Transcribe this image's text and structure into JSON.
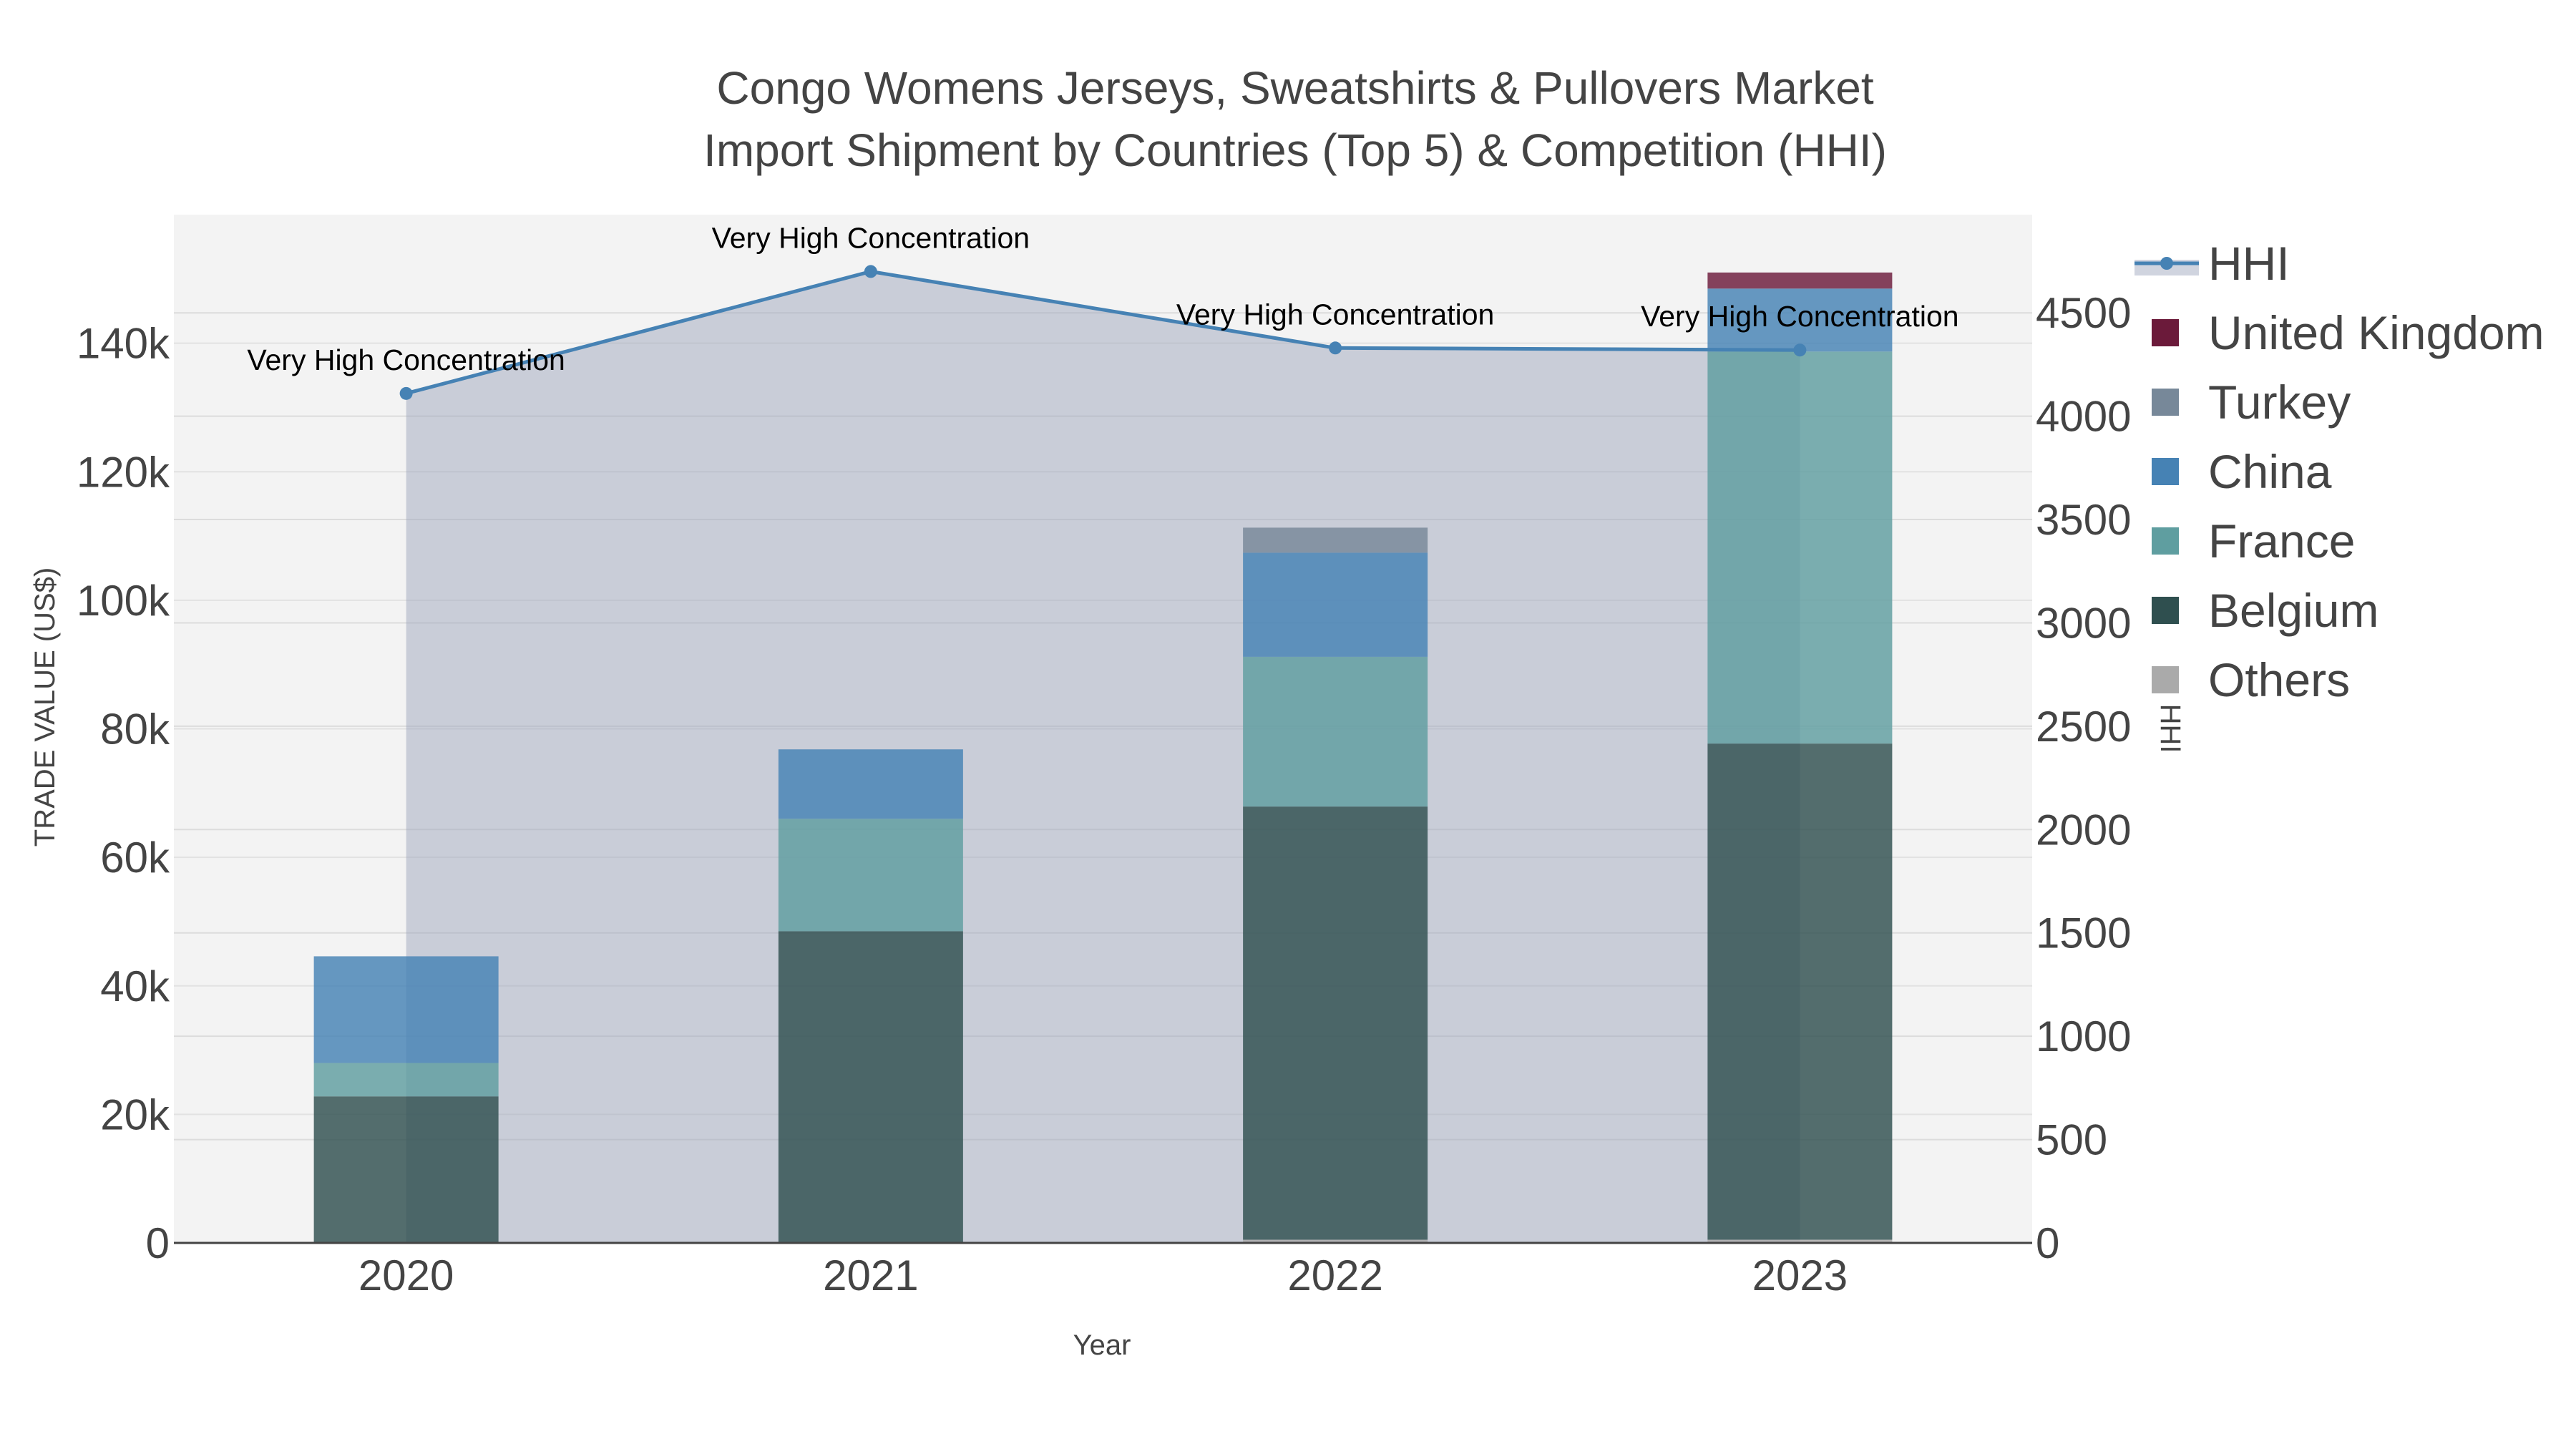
{
  "chart_data": {
    "type": "bar",
    "title": "Congo Womens Jerseys, Sweatshirts & Pullovers Market",
    "subtitle": "Import Shipment by Countries (Top 5) & Competition (HHI)",
    "xlabel": "Year",
    "ylabel": "TRADE VALUE (US$)",
    "y2label": "HHI",
    "categories": [
      "2020",
      "2021",
      "2022",
      "2023"
    ],
    "ylim": [
      0,
      160000
    ],
    "y2lim": [
      0,
      4975
    ],
    "yticks": [
      "0",
      "20k",
      "40k",
      "60k",
      "80k",
      "100k",
      "120k",
      "140k"
    ],
    "yticks_values": [
      0,
      20000,
      40000,
      60000,
      80000,
      100000,
      120000,
      140000
    ],
    "y2ticks": [
      "0",
      "500",
      "1000",
      "1500",
      "2000",
      "2500",
      "3000",
      "3500",
      "4000",
      "4500"
    ],
    "y2ticks_values": [
      0,
      500,
      1000,
      1500,
      2000,
      2500,
      3000,
      3500,
      4000,
      4500
    ],
    "series": [
      {
        "name": "Others",
        "color": "#aaaaaa",
        "values": [
          0,
          0,
          500,
          500
        ]
      },
      {
        "name": "Belgium",
        "color": "#2f4f4f",
        "values": [
          22800,
          48500,
          67400,
          77200
        ]
      },
      {
        "name": "France",
        "color": "#5f9ea0",
        "values": [
          5200,
          17500,
          23300,
          61000
        ]
      },
      {
        "name": "China",
        "color": "#4682b4",
        "values": [
          16600,
          10800,
          16200,
          9800
        ]
      },
      {
        "name": "Turkey",
        "color": "#778899",
        "values": [
          0,
          0,
          3900,
          0
        ]
      },
      {
        "name": "United Kingdom",
        "color": "#6b1a3a",
        "values": [
          0,
          0,
          0,
          2500
        ]
      }
    ],
    "hhi": {
      "name": "HHI",
      "color": "#4682b4",
      "values": [
        4110,
        4700,
        4330,
        4320
      ],
      "labels": [
        "Very High Concentration",
        "Very High Concentration",
        "Very High Concentration",
        "Very High Concentration"
      ]
    },
    "legend": [
      "HHI",
      "United Kingdom",
      "Turkey",
      "China",
      "France",
      "Belgium",
      "Others"
    ]
  }
}
